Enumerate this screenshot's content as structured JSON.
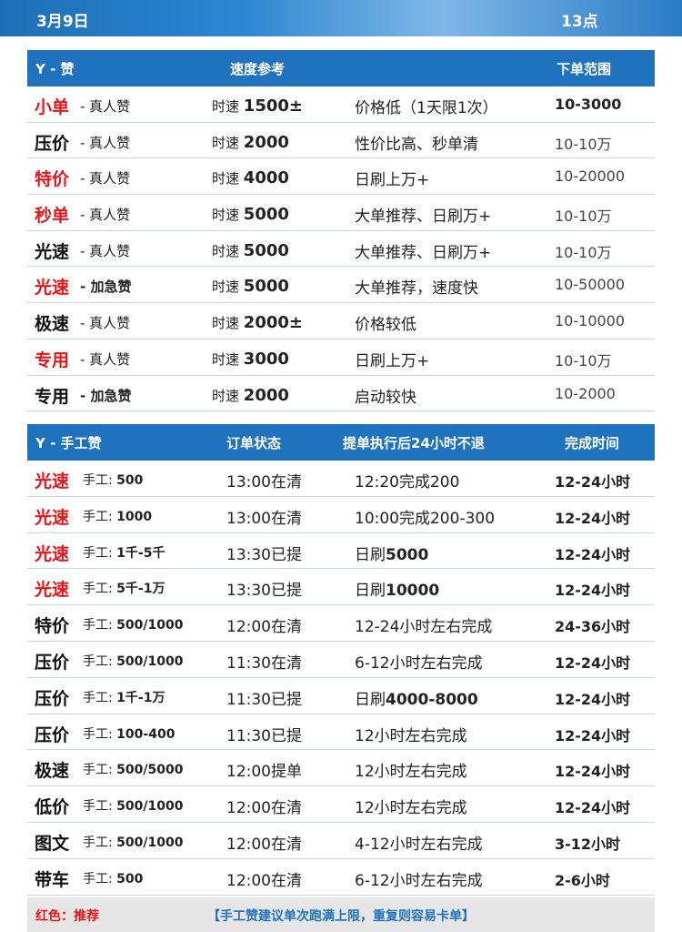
{
  "header": {
    "date": "3月9日",
    "hour": "13点"
  },
  "table1": {
    "headers": {
      "col1": "Y - 赞",
      "col2": "速度参考",
      "col3": "下单范围"
    },
    "rows": [
      {
        "tag": "小单",
        "tag_color": "red",
        "sub": "- 真人赞",
        "sub_bold": false,
        "speed_prefix": "时速",
        "speed": "1500±",
        "note": "价格低（1天限1次）",
        "range": "10-3000",
        "range_bold": true
      },
      {
        "tag": "压价",
        "tag_color": "black",
        "sub": "- 真人赞",
        "sub_bold": false,
        "speed_prefix": "时速",
        "speed": "2000",
        "note": "性价比高、秒单清",
        "range": "10-10万",
        "range_bold": false
      },
      {
        "tag": "特价",
        "tag_color": "red",
        "sub": "- 真人赞",
        "sub_bold": false,
        "speed_prefix": "时速",
        "speed": "4000",
        "note": "日刷上万+",
        "range": "10-20000",
        "range_bold": false
      },
      {
        "tag": "秒单",
        "tag_color": "red",
        "sub": "- 真人赞",
        "sub_bold": false,
        "speed_prefix": "时速",
        "speed": "5000",
        "note": "大单推荐、日刷万+",
        "range": "10-10万",
        "range_bold": false
      },
      {
        "tag": "光速",
        "tag_color": "black",
        "sub": "- 真人赞",
        "sub_bold": false,
        "speed_prefix": "时速",
        "speed": "5000",
        "note": "大单推荐、日刷万+",
        "range": "10-10万",
        "range_bold": false
      },
      {
        "tag": "光速",
        "tag_color": "red",
        "sub": "- 加急赞",
        "sub_bold": true,
        "speed_prefix": "时速",
        "speed": "5000",
        "note": "大单推荐，速度快",
        "range": "10-50000",
        "range_bold": false
      },
      {
        "tag": "极速",
        "tag_color": "black",
        "sub": "- 真人赞",
        "sub_bold": false,
        "speed_prefix": "时速",
        "speed": "2000±",
        "note": "价格较低",
        "range": "10-10000",
        "range_bold": false
      },
      {
        "tag": "专用",
        "tag_color": "red",
        "sub": "- 真人赞",
        "sub_bold": false,
        "speed_prefix": "时速",
        "speed": "3000",
        "note": "日刷上万+",
        "range": "10-10万",
        "range_bold": false
      },
      {
        "tag": "专用",
        "tag_color": "black",
        "sub": "- 加急赞",
        "sub_bold": true,
        "speed_prefix": "时速",
        "speed": "2000",
        "note": "启动较快",
        "range": "10-2000",
        "range_bold": false
      }
    ]
  },
  "table2": {
    "headers": {
      "col1": "Y - 手工赞",
      "col2": "订单状态",
      "col3": "提单执行后24小时不退",
      "col4": "完成时间"
    },
    "rows": [
      {
        "tag": "光速",
        "tag_color": "red",
        "hand_prefix": "手工:",
        "hand_qty": "500",
        "status": "13:00在清",
        "note_plain": "12:20完成200",
        "note_bold": "",
        "done": "12-24小时"
      },
      {
        "tag": "光速",
        "tag_color": "red",
        "hand_prefix": "手工:",
        "hand_qty": "1000",
        "status": "13:00在清",
        "note_plain": "10:00完成200-300",
        "note_bold": "",
        "done": "12-24小时"
      },
      {
        "tag": "光速",
        "tag_color": "red",
        "hand_prefix": "手工:",
        "hand_qty": "1千-5千",
        "status": "13:30已提",
        "note_plain": "日刷",
        "note_bold": "5000",
        "done": "12-24小时"
      },
      {
        "tag": "光速",
        "tag_color": "red",
        "hand_prefix": "手工:",
        "hand_qty": "5千-1万",
        "status": "13:30已提",
        "note_plain": "日刷",
        "note_bold": "10000",
        "done": "12-24小时"
      },
      {
        "tag": "特价",
        "tag_color": "black",
        "hand_prefix": "手工:",
        "hand_qty": "500/1000",
        "status": "12:00在清",
        "note_plain": "12-24小时左右完成",
        "note_bold": "",
        "done": "24-36小时"
      },
      {
        "tag": "压价",
        "tag_color": "black",
        "hand_prefix": "手工:",
        "hand_qty": "500/1000",
        "status": "11:30在清",
        "note_plain": "6-12小时左右完成",
        "note_bold": "",
        "done": "12-24小时"
      },
      {
        "tag": "压价",
        "tag_color": "black",
        "hand_prefix": "手工:",
        "hand_qty": "1千-1万",
        "status": "11:30已提",
        "note_plain": "日刷",
        "note_bold": "4000-8000",
        "done": "12-24小时"
      },
      {
        "tag": "压价",
        "tag_color": "black",
        "hand_prefix": "手工:",
        "hand_qty": "100-400",
        "status": "11:30已提",
        "note_plain": "12小时左右完成",
        "note_bold": "",
        "done": "12-24小时"
      },
      {
        "tag": "极速",
        "tag_color": "black",
        "hand_prefix": "手工:",
        "hand_qty": "500/5000",
        "status": "12:00提单",
        "note_plain": "12小时左右完成",
        "note_bold": "",
        "done": "12-24小时"
      },
      {
        "tag": "低价",
        "tag_color": "black",
        "hand_prefix": "手工:",
        "hand_qty": "500/1000",
        "status": "12:00在清",
        "note_plain": "12小时左右完成",
        "note_bold": "",
        "done": "12-24小时"
      },
      {
        "tag": "图文",
        "tag_color": "black",
        "hand_prefix": "手工:",
        "hand_qty": "500/1000",
        "status": "12:00在清",
        "note_plain": "4-12小时左右完成",
        "note_bold": "",
        "done": "3-12小时"
      },
      {
        "tag": "带车",
        "tag_color": "black",
        "hand_prefix": "手工:",
        "hand_qty": "500",
        "status": "12:00在清",
        "note_plain": "6-12小时左右完成",
        "note_bold": "",
        "done": "2-6小时"
      }
    ]
  },
  "footer": {
    "legend": "红色：推荐",
    "advice": "【手工赞建议单次跑满上限，重复则容易卡单】"
  },
  "colors": {
    "red": "#e5161a",
    "header_blue": "#1f73be"
  }
}
